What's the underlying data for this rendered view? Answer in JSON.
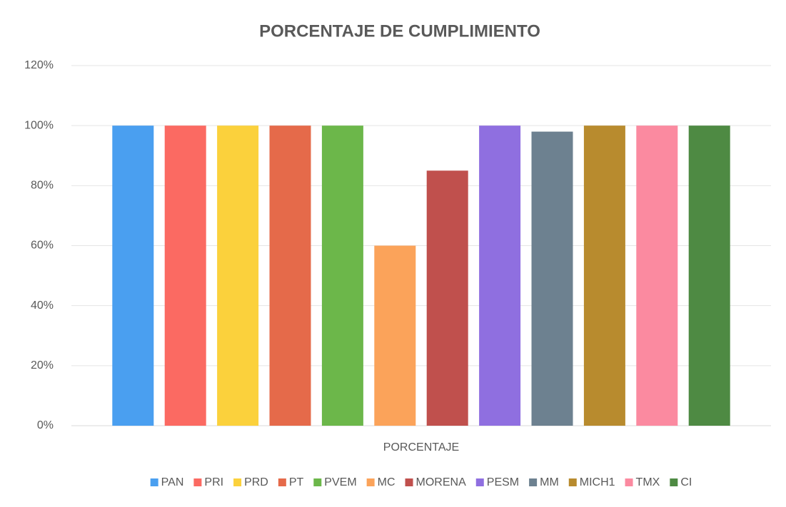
{
  "chart_data": {
    "type": "bar",
    "title": "PORCENTAJE DE CUMPLIMIENTO",
    "categories": [
      "PORCENTAJE"
    ],
    "series": [
      {
        "name": "PAN",
        "color": "#4a9ff0",
        "values": [
          100
        ]
      },
      {
        "name": "PRI",
        "color": "#fb6a62",
        "values": [
          100
        ]
      },
      {
        "name": "PRD",
        "color": "#fbd13c",
        "values": [
          100
        ]
      },
      {
        "name": "PT",
        "color": "#e56a4a",
        "values": [
          100
        ]
      },
      {
        "name": "PVEM",
        "color": "#6cb74a",
        "values": [
          100
        ]
      },
      {
        "name": "MC",
        "color": "#fba35a",
        "values": [
          60
        ]
      },
      {
        "name": "MORENA",
        "color": "#c0504d",
        "values": [
          85
        ]
      },
      {
        "name": "PESM",
        "color": "#8f6fe0",
        "values": [
          100
        ]
      },
      {
        "name": "MM",
        "color": "#6d8190",
        "values": [
          98
        ]
      },
      {
        "name": "MICH1",
        "color": "#b88b2e",
        "values": [
          100
        ]
      },
      {
        "name": "TMX",
        "color": "#fb8aa0",
        "values": [
          100
        ]
      },
      {
        "name": "CI",
        "color": "#4e8a43",
        "values": [
          100
        ]
      }
    ],
    "ylim": [
      0,
      120
    ],
    "yticks": [
      {
        "value": 0,
        "label": "0%"
      },
      {
        "value": 20,
        "label": "20%"
      },
      {
        "value": 40,
        "label": "40%"
      },
      {
        "value": 60,
        "label": "60%"
      },
      {
        "value": 80,
        "label": "80%"
      },
      {
        "value": 100,
        "label": "100%"
      },
      {
        "value": 120,
        "label": "120%"
      }
    ],
    "grid": true
  }
}
